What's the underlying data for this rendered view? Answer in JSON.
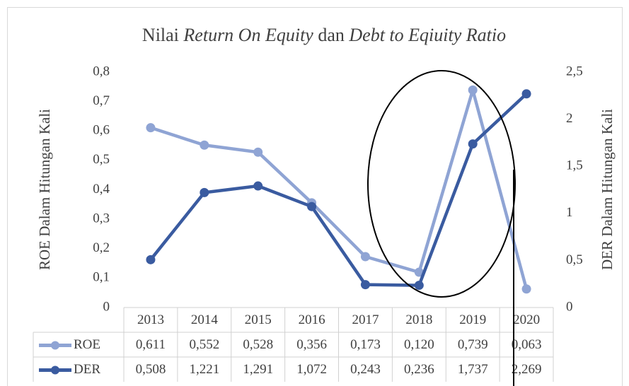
{
  "chart_data": {
    "type": "line",
    "title": [
      "Nilai ",
      "Return On Equity",
      " dan ",
      "Debt to Eqiuity Ratio"
    ],
    "y_label": "ROE Dalam Hitungan Kali",
    "y2_label": "DER Dalam Hitungan Kali",
    "categories": [
      "2013",
      "2014",
      "2015",
      "2016",
      "2017",
      "2018",
      "2019",
      "2020"
    ],
    "series": [
      {
        "name": "ROE",
        "color": "#8fa4d4",
        "values": [
          0.611,
          0.552,
          0.528,
          0.356,
          0.173,
          0.12,
          0.739,
          0.063
        ],
        "value_labels": [
          "0,611",
          "0,552",
          "0,528",
          "0,356",
          "0,173",
          "0,120",
          "0,739",
          "0,063"
        ]
      },
      {
        "name": "DER",
        "color": "#3a5ba0",
        "axis": "y2",
        "values": [
          0.508,
          1.221,
          1.291,
          1.072,
          0.243,
          0.236,
          1.737,
          2.269
        ],
        "value_labels": [
          "0,508",
          "1,221",
          "1,291",
          "1,072",
          "0,243",
          "0,236",
          "1,737",
          "2,269"
        ]
      }
    ],
    "ylim": [
      0,
      0.8
    ],
    "yticks": [
      0,
      {
        "value": 0.1,
        "label": "0,1"
      },
      {
        "value": 0.2,
        "label": "0,2"
      },
      {
        "value": 0.3,
        "label": "0,3"
      },
      {
        "value": 0.4,
        "label": "0,4"
      },
      {
        "value": 0.5,
        "label": "0,5"
      },
      {
        "value": 0.6,
        "label": "0,6"
      },
      {
        "value": 0.7,
        "label": "0,7"
      },
      {
        "value": 0.8,
        "label": "0,8"
      }
    ],
    "y2lim": [
      0,
      2.5
    ],
    "y2ticks": [
      0,
      {
        "value": 0.5,
        "label": "0,5"
      },
      1,
      {
        "value": 1.5,
        "label": "1,5"
      },
      2,
      {
        "value": 2.5,
        "label": "2,5"
      }
    ]
  }
}
